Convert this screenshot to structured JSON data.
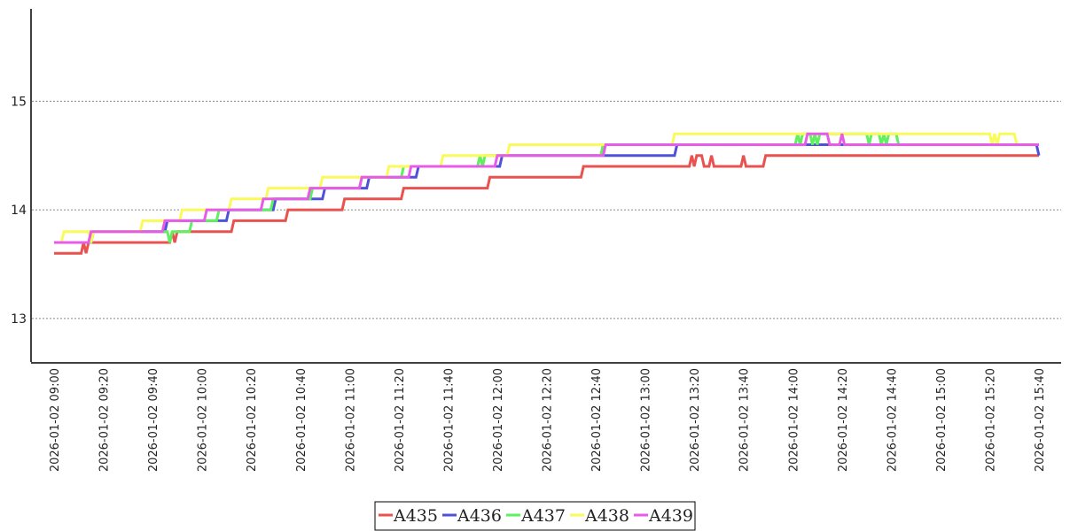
{
  "chart_data": {
    "type": "line",
    "title": "",
    "xlabel": "",
    "ylabel": "",
    "xlim": [
      "2026-01-02 09:00",
      "2026-01-02 15:40"
    ],
    "ylim": [
      12.6,
      15.85
    ],
    "x_ticks": [
      "2026-01-02 09:00",
      "2026-01-02 09:20",
      "2026-01-02 09:40",
      "2026-01-02 10:00",
      "2026-01-02 10:20",
      "2026-01-02 10:40",
      "2026-01-02 11:00",
      "2026-01-02 11:20",
      "2026-01-02 11:40",
      "2026-01-02 12:00",
      "2026-01-02 12:20",
      "2026-01-02 12:40",
      "2026-01-02 13:00",
      "2026-01-02 13:20",
      "2026-01-02 13:40",
      "2026-01-02 14:00",
      "2026-01-02 14:20",
      "2026-01-02 14:40",
      "2026-01-02 15:00",
      "2026-01-02 15:20",
      "2026-01-02 15:40"
    ],
    "y_ticks": [
      13,
      14,
      15
    ],
    "grid": "horizontal dotted",
    "legend": "bottom-center",
    "series": [
      {
        "name": "A435",
        "color": "#e8524f",
        "points": [
          [
            "09:00",
            13.6
          ],
          [
            "09:11",
            13.6
          ],
          [
            "09:12",
            13.7
          ],
          [
            "09:13",
            13.6
          ],
          [
            "09:14",
            13.7
          ],
          [
            "09:47",
            13.7
          ],
          [
            "09:48",
            13.8
          ],
          [
            "09:49",
            13.7
          ],
          [
            "09:50",
            13.8
          ],
          [
            "10:12",
            13.8
          ],
          [
            "10:13",
            13.9
          ],
          [
            "10:34",
            13.9
          ],
          [
            "10:35",
            14.0
          ],
          [
            "10:57",
            14.0
          ],
          [
            "10:58",
            14.1
          ],
          [
            "11:21",
            14.1
          ],
          [
            "11:22",
            14.2
          ],
          [
            "11:56",
            14.2
          ],
          [
            "11:57",
            14.3
          ],
          [
            "12:34",
            14.3
          ],
          [
            "12:35",
            14.4
          ],
          [
            "13:18",
            14.4
          ],
          [
            "13:19",
            14.5
          ],
          [
            "13:20",
            14.4
          ],
          [
            "13:21",
            14.5
          ],
          [
            "13:23",
            14.5
          ],
          [
            "13:24",
            14.4
          ],
          [
            "13:26",
            14.4
          ],
          [
            "13:27",
            14.5
          ],
          [
            "13:28",
            14.4
          ],
          [
            "13:39",
            14.4
          ],
          [
            "13:40",
            14.5
          ],
          [
            "13:41",
            14.4
          ],
          [
            "13:48",
            14.4
          ],
          [
            "13:49",
            14.5
          ],
          [
            "15:40",
            14.5
          ]
        ]
      },
      {
        "name": "A436",
        "color": "#4f52d8",
        "points": [
          [
            "09:00",
            13.7
          ],
          [
            "09:15",
            13.7
          ],
          [
            "09:16",
            13.8
          ],
          [
            "09:45",
            13.8
          ],
          [
            "09:46",
            13.9
          ],
          [
            "10:10",
            13.9
          ],
          [
            "10:11",
            14.0
          ],
          [
            "10:29",
            14.0
          ],
          [
            "10:30",
            14.1
          ],
          [
            "10:49",
            14.1
          ],
          [
            "10:50",
            14.2
          ],
          [
            "11:07",
            14.2
          ],
          [
            "11:08",
            14.3
          ],
          [
            "11:27",
            14.3
          ],
          [
            "11:28",
            14.4
          ],
          [
            "12:01",
            14.4
          ],
          [
            "12:02",
            14.5
          ],
          [
            "13:12",
            14.5
          ],
          [
            "13:13",
            14.6
          ],
          [
            "15:39",
            14.6
          ],
          [
            "15:40",
            14.5
          ]
        ]
      },
      {
        "name": "A437",
        "color": "#5ef05e",
        "points": [
          [
            "09:00",
            13.7
          ],
          [
            "09:15",
            13.7
          ],
          [
            "09:16",
            13.8
          ],
          [
            "09:46",
            13.8
          ],
          [
            "09:47",
            13.7
          ],
          [
            "09:48",
            13.8
          ],
          [
            "09:55",
            13.8
          ],
          [
            "09:56",
            13.9
          ],
          [
            "10:06",
            13.9
          ],
          [
            "10:07",
            14.0
          ],
          [
            "10:28",
            14.0
          ],
          [
            "10:29",
            14.1
          ],
          [
            "10:44",
            14.1
          ],
          [
            "10:45",
            14.2
          ],
          [
            "11:04",
            14.2
          ],
          [
            "11:05",
            14.3
          ],
          [
            "11:21",
            14.3
          ],
          [
            "11:22",
            14.4
          ],
          [
            "11:52",
            14.4
          ],
          [
            "11:53",
            14.5
          ],
          [
            "11:54",
            14.4
          ],
          [
            "11:55",
            14.5
          ],
          [
            "12:42",
            14.5
          ],
          [
            "12:43",
            14.6
          ],
          [
            "14:01",
            14.6
          ],
          [
            "14:02",
            14.7
          ],
          [
            "14:03",
            14.6
          ],
          [
            "14:04",
            14.7
          ],
          [
            "14:07",
            14.7
          ],
          [
            "14:08",
            14.6
          ],
          [
            "14:09",
            14.7
          ],
          [
            "14:10",
            14.6
          ],
          [
            "14:11",
            14.7
          ],
          [
            "14:30",
            14.7
          ],
          [
            "14:31",
            14.6
          ],
          [
            "14:32",
            14.7
          ],
          [
            "14:35",
            14.7
          ],
          [
            "14:36",
            14.6
          ],
          [
            "14:37",
            14.7
          ],
          [
            "14:38",
            14.6
          ],
          [
            "14:39",
            14.7
          ],
          [
            "14:42",
            14.7
          ],
          [
            "14:43",
            14.6
          ],
          [
            "15:40",
            14.6
          ]
        ]
      },
      {
        "name": "A438",
        "color": "#fafa5a",
        "points": [
          [
            "09:00",
            13.7
          ],
          [
            "09:03",
            13.7
          ],
          [
            "09:04",
            13.8
          ],
          [
            "09:14",
            13.8
          ],
          [
            "09:15",
            13.7
          ],
          [
            "09:16",
            13.8
          ],
          [
            "09:35",
            13.8
          ],
          [
            "09:36",
            13.9
          ],
          [
            "09:51",
            13.9
          ],
          [
            "09:52",
            14.0
          ],
          [
            "10:11",
            14.0
          ],
          [
            "10:12",
            14.1
          ],
          [
            "10:26",
            14.1
          ],
          [
            "10:27",
            14.2
          ],
          [
            "10:48",
            14.2
          ],
          [
            "10:49",
            14.3
          ],
          [
            "11:05",
            14.3
          ],
          [
            "11:06",
            14.3
          ],
          [
            "11:15",
            14.3
          ],
          [
            "11:16",
            14.4
          ],
          [
            "11:37",
            14.4
          ],
          [
            "11:38",
            14.5
          ],
          [
            "12:04",
            14.5
          ],
          [
            "12:05",
            14.6
          ],
          [
            "13:11",
            14.6
          ],
          [
            "13:12",
            14.7
          ],
          [
            "15:20",
            14.7
          ],
          [
            "15:21",
            14.6
          ],
          [
            "15:22",
            14.7
          ],
          [
            "15:23",
            14.6
          ],
          [
            "15:24",
            14.7
          ],
          [
            "15:30",
            14.7
          ],
          [
            "15:31",
            14.6
          ],
          [
            "15:40",
            14.6
          ]
        ]
      },
      {
        "name": "A439",
        "color": "#e85ae8",
        "points": [
          [
            "09:00",
            13.7
          ],
          [
            "09:14",
            13.7
          ],
          [
            "09:15",
            13.8
          ],
          [
            "09:44",
            13.8
          ],
          [
            "09:45",
            13.9
          ],
          [
            "10:01",
            13.9
          ],
          [
            "10:02",
            14.0
          ],
          [
            "10:24",
            14.0
          ],
          [
            "10:25",
            14.1
          ],
          [
            "10:43",
            14.1
          ],
          [
            "10:44",
            14.2
          ],
          [
            "11:04",
            14.2
          ],
          [
            "11:05",
            14.3
          ],
          [
            "11:24",
            14.3
          ],
          [
            "11:25",
            14.4
          ],
          [
            "11:59",
            14.4
          ],
          [
            "12:00",
            14.5
          ],
          [
            "12:43",
            14.5
          ],
          [
            "12:44",
            14.6
          ],
          [
            "14:05",
            14.6
          ],
          [
            "14:06",
            14.7
          ],
          [
            "14:14",
            14.7
          ],
          [
            "14:15",
            14.6
          ],
          [
            "14:19",
            14.6
          ],
          [
            "14:20",
            14.7
          ],
          [
            "14:21",
            14.6
          ],
          [
            "15:40",
            14.6
          ]
        ]
      }
    ]
  }
}
